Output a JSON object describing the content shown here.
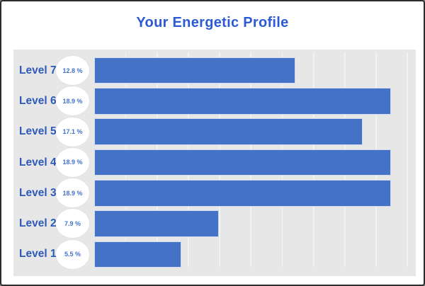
{
  "title": "Your Energetic Profile",
  "colors": {
    "title": "#2b5ad4",
    "label": "#2d59b9",
    "percent": "#4372c9",
    "bar": "#4472c7",
    "bar_edge": "#d2daee",
    "panel": "#e7e7e7",
    "grid": "#f5f5f5",
    "page": "#ffffff",
    "frame": "#2c2c2c",
    "circle": "#ffffff"
  },
  "chart_data": {
    "type": "bar",
    "orientation": "horizontal",
    "title": "Your Energetic Profile",
    "categories": [
      "Level 7",
      "Level 6",
      "Level 5",
      "Level 4",
      "Level 3",
      "Level 2",
      "Level 1"
    ],
    "values": [
      12.8,
      18.9,
      17.1,
      18.9,
      18.9,
      7.9,
      5.5
    ],
    "value_labels": [
      "12.8 %",
      "18.9 %",
      "17.1 %",
      "18.9 %",
      "18.9 %",
      "7.9 %",
      "5.5 %"
    ],
    "unit": "%",
    "xlim": [
      0,
      20
    ],
    "gridline_step_percent": 2,
    "grid": true,
    "legend": false,
    "value_label_style": "white-circle-badge-left-of-bar"
  }
}
